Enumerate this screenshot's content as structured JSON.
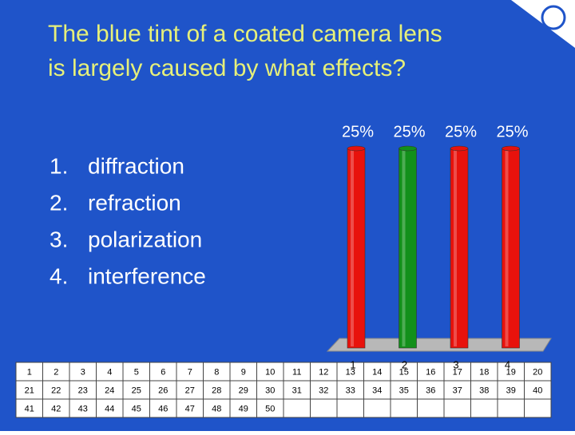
{
  "title_lines": [
    "The blue tint of a coated camera lens",
    "is largely caused by what effects?"
  ],
  "options": [
    {
      "number": "1.",
      "text": "diffraction"
    },
    {
      "number": "2.",
      "text": "refraction"
    },
    {
      "number": "3.",
      "text": "polarization"
    },
    {
      "number": "4.",
      "text": "interference"
    }
  ],
  "chart_data": {
    "type": "bar",
    "categories": [
      "1",
      "2",
      "3",
      "4"
    ],
    "values": [
      25,
      25,
      25,
      25
    ],
    "value_labels": [
      "25%",
      "25%",
      "25%",
      "25%"
    ],
    "colors": [
      "#e8120c",
      "#12901a",
      "#e8120c",
      "#e8120c"
    ]
  },
  "response_grid": [
    1,
    2,
    3,
    4,
    5,
    6,
    7,
    8,
    9,
    10,
    11,
    12,
    13,
    14,
    15,
    16,
    17,
    18,
    19,
    20,
    21,
    22,
    23,
    24,
    25,
    26,
    27,
    28,
    29,
    30,
    31,
    32,
    33,
    34,
    35,
    36,
    37,
    38,
    39,
    40,
    41,
    42,
    43,
    44,
    45,
    46,
    47,
    48,
    49,
    50
  ]
}
